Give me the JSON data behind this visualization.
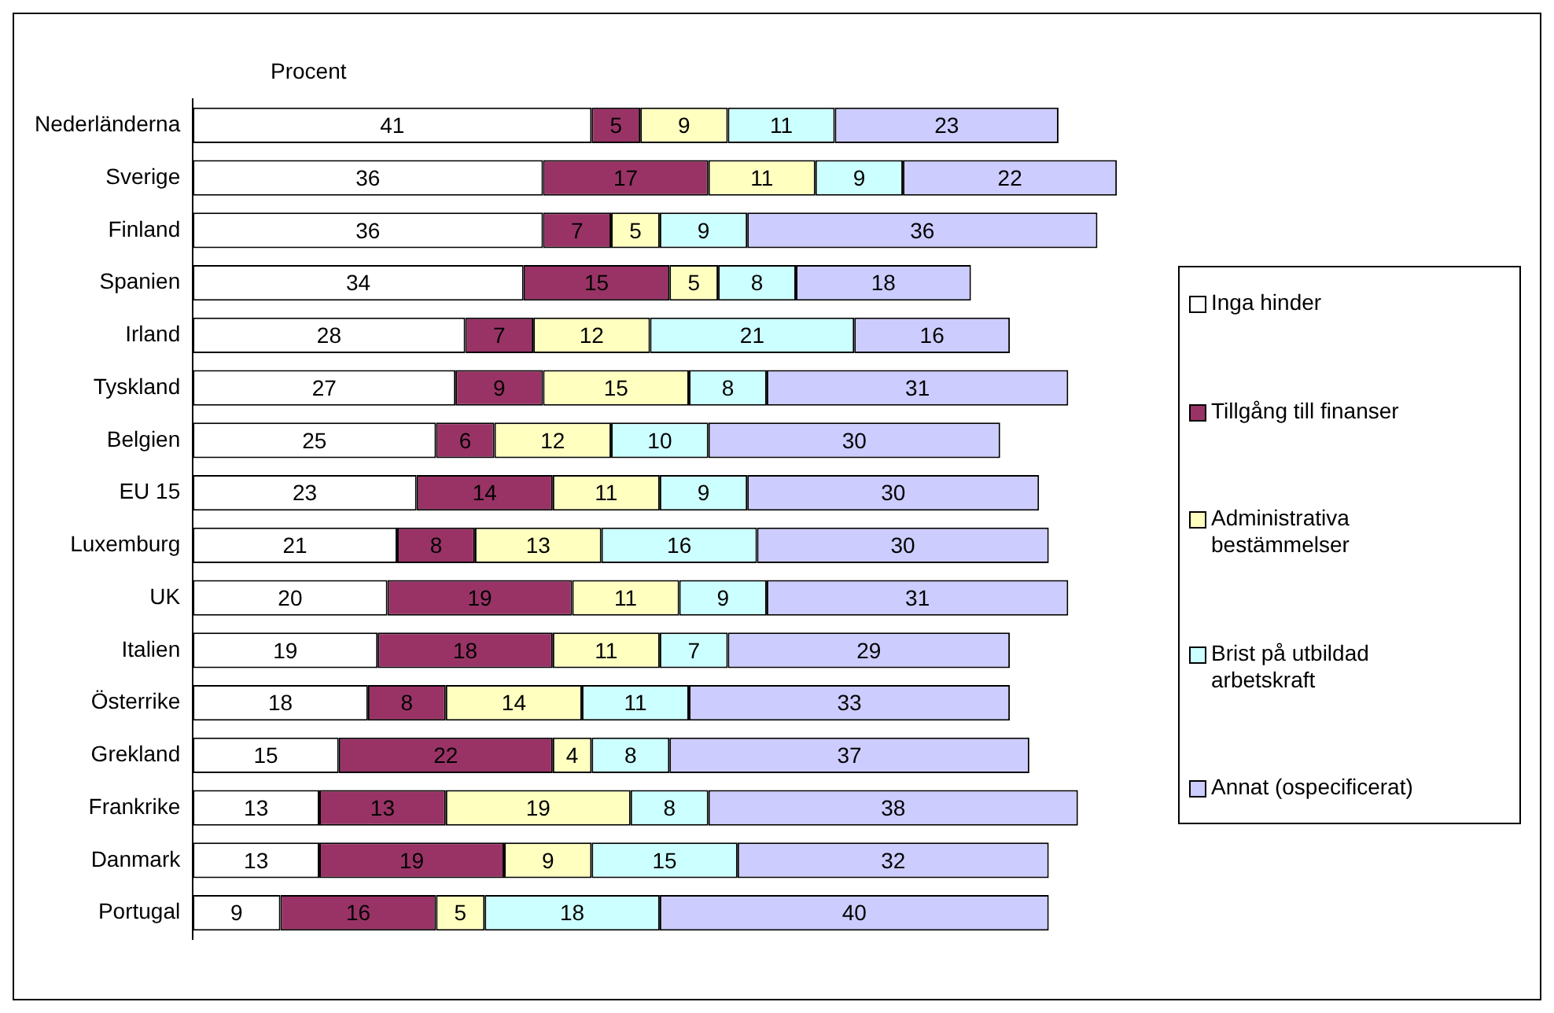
{
  "chart_data": {
    "type": "bar",
    "orientation": "horizontal",
    "stacked": true,
    "data_labels": true,
    "legend": "right",
    "grid": false,
    "tick_labels": "y",
    "annotations": [
      "Procent"
    ],
    "categories": [
      "Nederländerna",
      "Sverige",
      "Finland",
      "Spanien",
      "Irland",
      "Tyskland",
      "Belgien",
      "EU 15",
      "Luxemburg",
      "UK",
      "Italien",
      "Österrike",
      "Grekland",
      "Frankrike",
      "Danmark",
      "Portugal"
    ],
    "series": [
      {
        "name": "Inga hinder",
        "color": "#ffffff",
        "values": [
          41,
          36,
          36,
          34,
          28,
          27,
          25,
          23,
          21,
          20,
          19,
          18,
          15,
          13,
          13,
          9
        ]
      },
      {
        "name": "Tillgång till finanser",
        "color": "#993366",
        "values": [
          5,
          17,
          7,
          15,
          7,
          9,
          6,
          14,
          8,
          19,
          18,
          8,
          22,
          13,
          19,
          16
        ]
      },
      {
        "name": "Administrativa bestämmelser",
        "color": "#ffffc0",
        "values": [
          9,
          11,
          5,
          5,
          12,
          15,
          12,
          11,
          13,
          11,
          11,
          14,
          4,
          19,
          9,
          5
        ]
      },
      {
        "name": "Brist på utbildad arbetskraft",
        "color": "#ccffff",
        "values": [
          11,
          9,
          9,
          8,
          21,
          8,
          10,
          9,
          16,
          9,
          7,
          11,
          8,
          8,
          15,
          18
        ]
      },
      {
        "name": "Annat (ospecificerat)",
        "color": "#ccccff",
        "values": [
          23,
          22,
          36,
          18,
          16,
          31,
          30,
          30,
          30,
          31,
          29,
          33,
          37,
          38,
          32,
          40
        ]
      }
    ]
  }
}
